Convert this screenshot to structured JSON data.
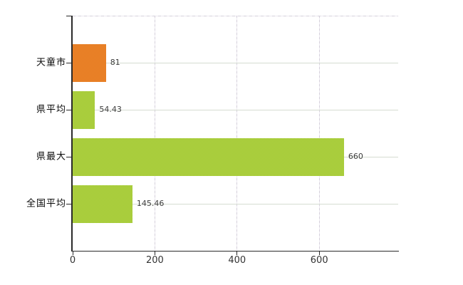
{
  "chart_data": {
    "type": "bar",
    "orientation": "horizontal",
    "title": "",
    "xlabel": "",
    "ylabel": "",
    "categories": [
      "天童市",
      "県平均",
      "県最大",
      "全国平均"
    ],
    "values": [
      81,
      54.43,
      660,
      145.46
    ],
    "value_labels": [
      "81",
      "54.43",
      "660",
      "145.46"
    ],
    "xlim": [
      0,
      792
    ],
    "x_ticks": [
      0,
      200,
      400,
      600
    ],
    "x_tick_labels": [
      "0",
      "200",
      "400",
      "600"
    ],
    "grid": true,
    "legend": false,
    "bar_styles": [
      {
        "base": "#e1731d",
        "light": "#ef8c2f"
      },
      {
        "base": "#9dc32b",
        "light": "#b5d74e"
      },
      {
        "base": "#9dc32b",
        "light": "#b5d74e"
      },
      {
        "base": "#9dc32b",
        "light": "#b5d74e"
      }
    ]
  },
  "colors": {
    "background": "#ffffff",
    "axis_line": "#2a2a2a",
    "h_gridline": "#d5dcd1",
    "v_gridline_dark": "#d5d0db",
    "v_gridline_light": "#ece9f0",
    "category_label": "#0b0b0b",
    "value_label": "#3c3c3c",
    "tick_label": "#333333"
  }
}
